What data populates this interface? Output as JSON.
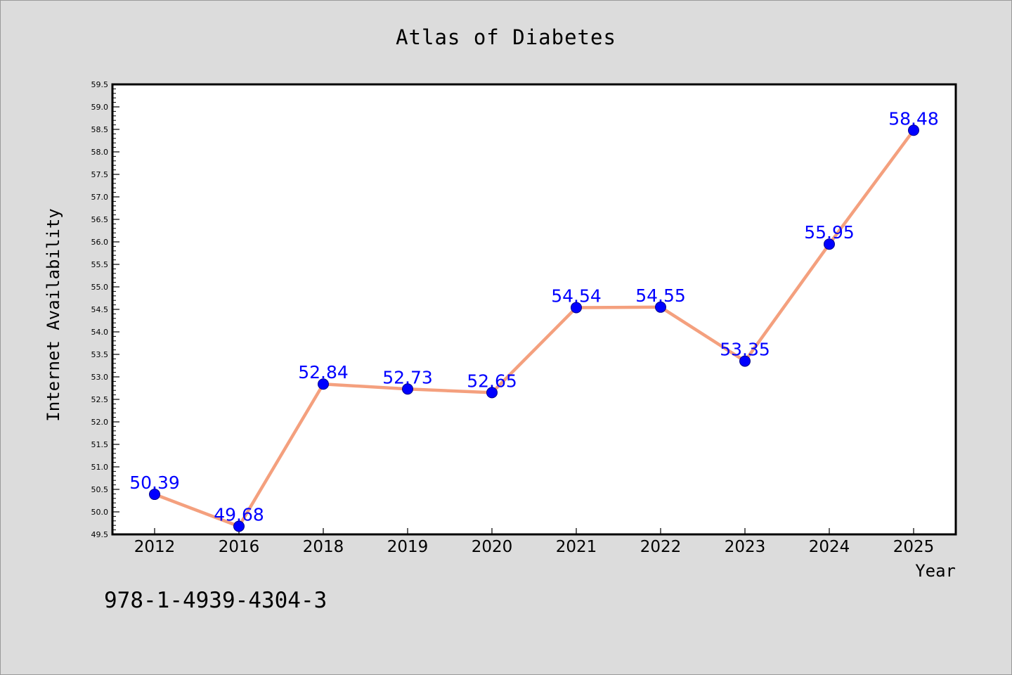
{
  "chart_data": {
    "type": "line",
    "title": "Atlas of Diabetes",
    "xlabel": "Year",
    "ylabel": "Internet Availability",
    "categories": [
      "2012",
      "2016",
      "2018",
      "2019",
      "2020",
      "2021",
      "2022",
      "2023",
      "2024",
      "2025"
    ],
    "series": [
      {
        "values": [
          50.39,
          49.68,
          52.84,
          52.73,
          52.65,
          54.54,
          54.55,
          53.35,
          55.95,
          58.48
        ]
      }
    ],
    "data_labels": [
      "50.39",
      "49.68",
      "52.84",
      "52.73",
      "52.65",
      "54.54",
      "54.55",
      "53.35",
      "55.95",
      "58.48"
    ],
    "ylim": [
      49.5,
      59.5
    ],
    "y_ticks": [
      "49.5",
      "50.0",
      "50.5",
      "51.0",
      "51.5",
      "52.0",
      "52.5",
      "53.0",
      "53.5",
      "54.0",
      "54.5",
      "55.0",
      "55.5",
      "56.0",
      "56.5",
      "57.0",
      "57.5",
      "58.0",
      "58.5",
      "59.0",
      "59.5"
    ],
    "grid": false,
    "legend": "none",
    "colors": {
      "line": "#f4a07e",
      "marker": "#0000ff",
      "data_label": "#0000ff",
      "background": "#dcdcdc",
      "plot_area": "#ffffff"
    }
  },
  "footnote": "978-1-4939-4304-3"
}
